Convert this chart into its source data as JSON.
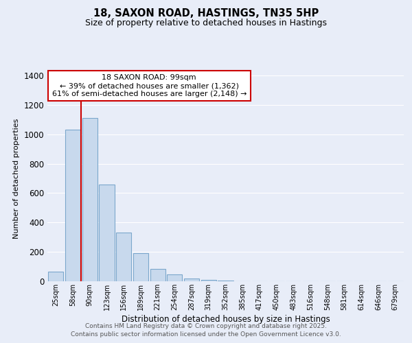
{
  "title": "18, SAXON ROAD, HASTINGS, TN35 5HP",
  "subtitle": "Size of property relative to detached houses in Hastings",
  "xlabel": "Distribution of detached houses by size in Hastings",
  "ylabel": "Number of detached properties",
  "bar_labels": [
    "25sqm",
    "58sqm",
    "90sqm",
    "123sqm",
    "156sqm",
    "189sqm",
    "221sqm",
    "254sqm",
    "287sqm",
    "319sqm",
    "352sqm",
    "385sqm",
    "417sqm",
    "450sqm",
    "483sqm",
    "516sqm",
    "548sqm",
    "581sqm",
    "614sqm",
    "646sqm",
    "679sqm"
  ],
  "bar_values": [
    65,
    1030,
    1110,
    660,
    330,
    190,
    85,
    48,
    20,
    10,
    5,
    0,
    0,
    0,
    0,
    0,
    0,
    0,
    0,
    0,
    0
  ],
  "bar_color": "#c8d9ed",
  "bar_edge_color": "#7ba7cc",
  "ylim": [
    0,
    1400
  ],
  "yticks": [
    0,
    200,
    400,
    600,
    800,
    1000,
    1200,
    1400
  ],
  "vline_x_index": 2,
  "vline_color": "#cc0000",
  "annotation_title": "18 SAXON ROAD: 99sqm",
  "annotation_line1": "← 39% of detached houses are smaller (1,362)",
  "annotation_line2": "61% of semi-detached houses are larger (2,148) →",
  "annotation_box_color": "#ffffff",
  "annotation_box_edge": "#cc0000",
  "background_color": "#e8edf8",
  "plot_bg_color": "#e8edf8",
  "grid_color": "#ffffff",
  "footer1": "Contains HM Land Registry data © Crown copyright and database right 2025.",
  "footer2": "Contains public sector information licensed under the Open Government Licence v3.0."
}
